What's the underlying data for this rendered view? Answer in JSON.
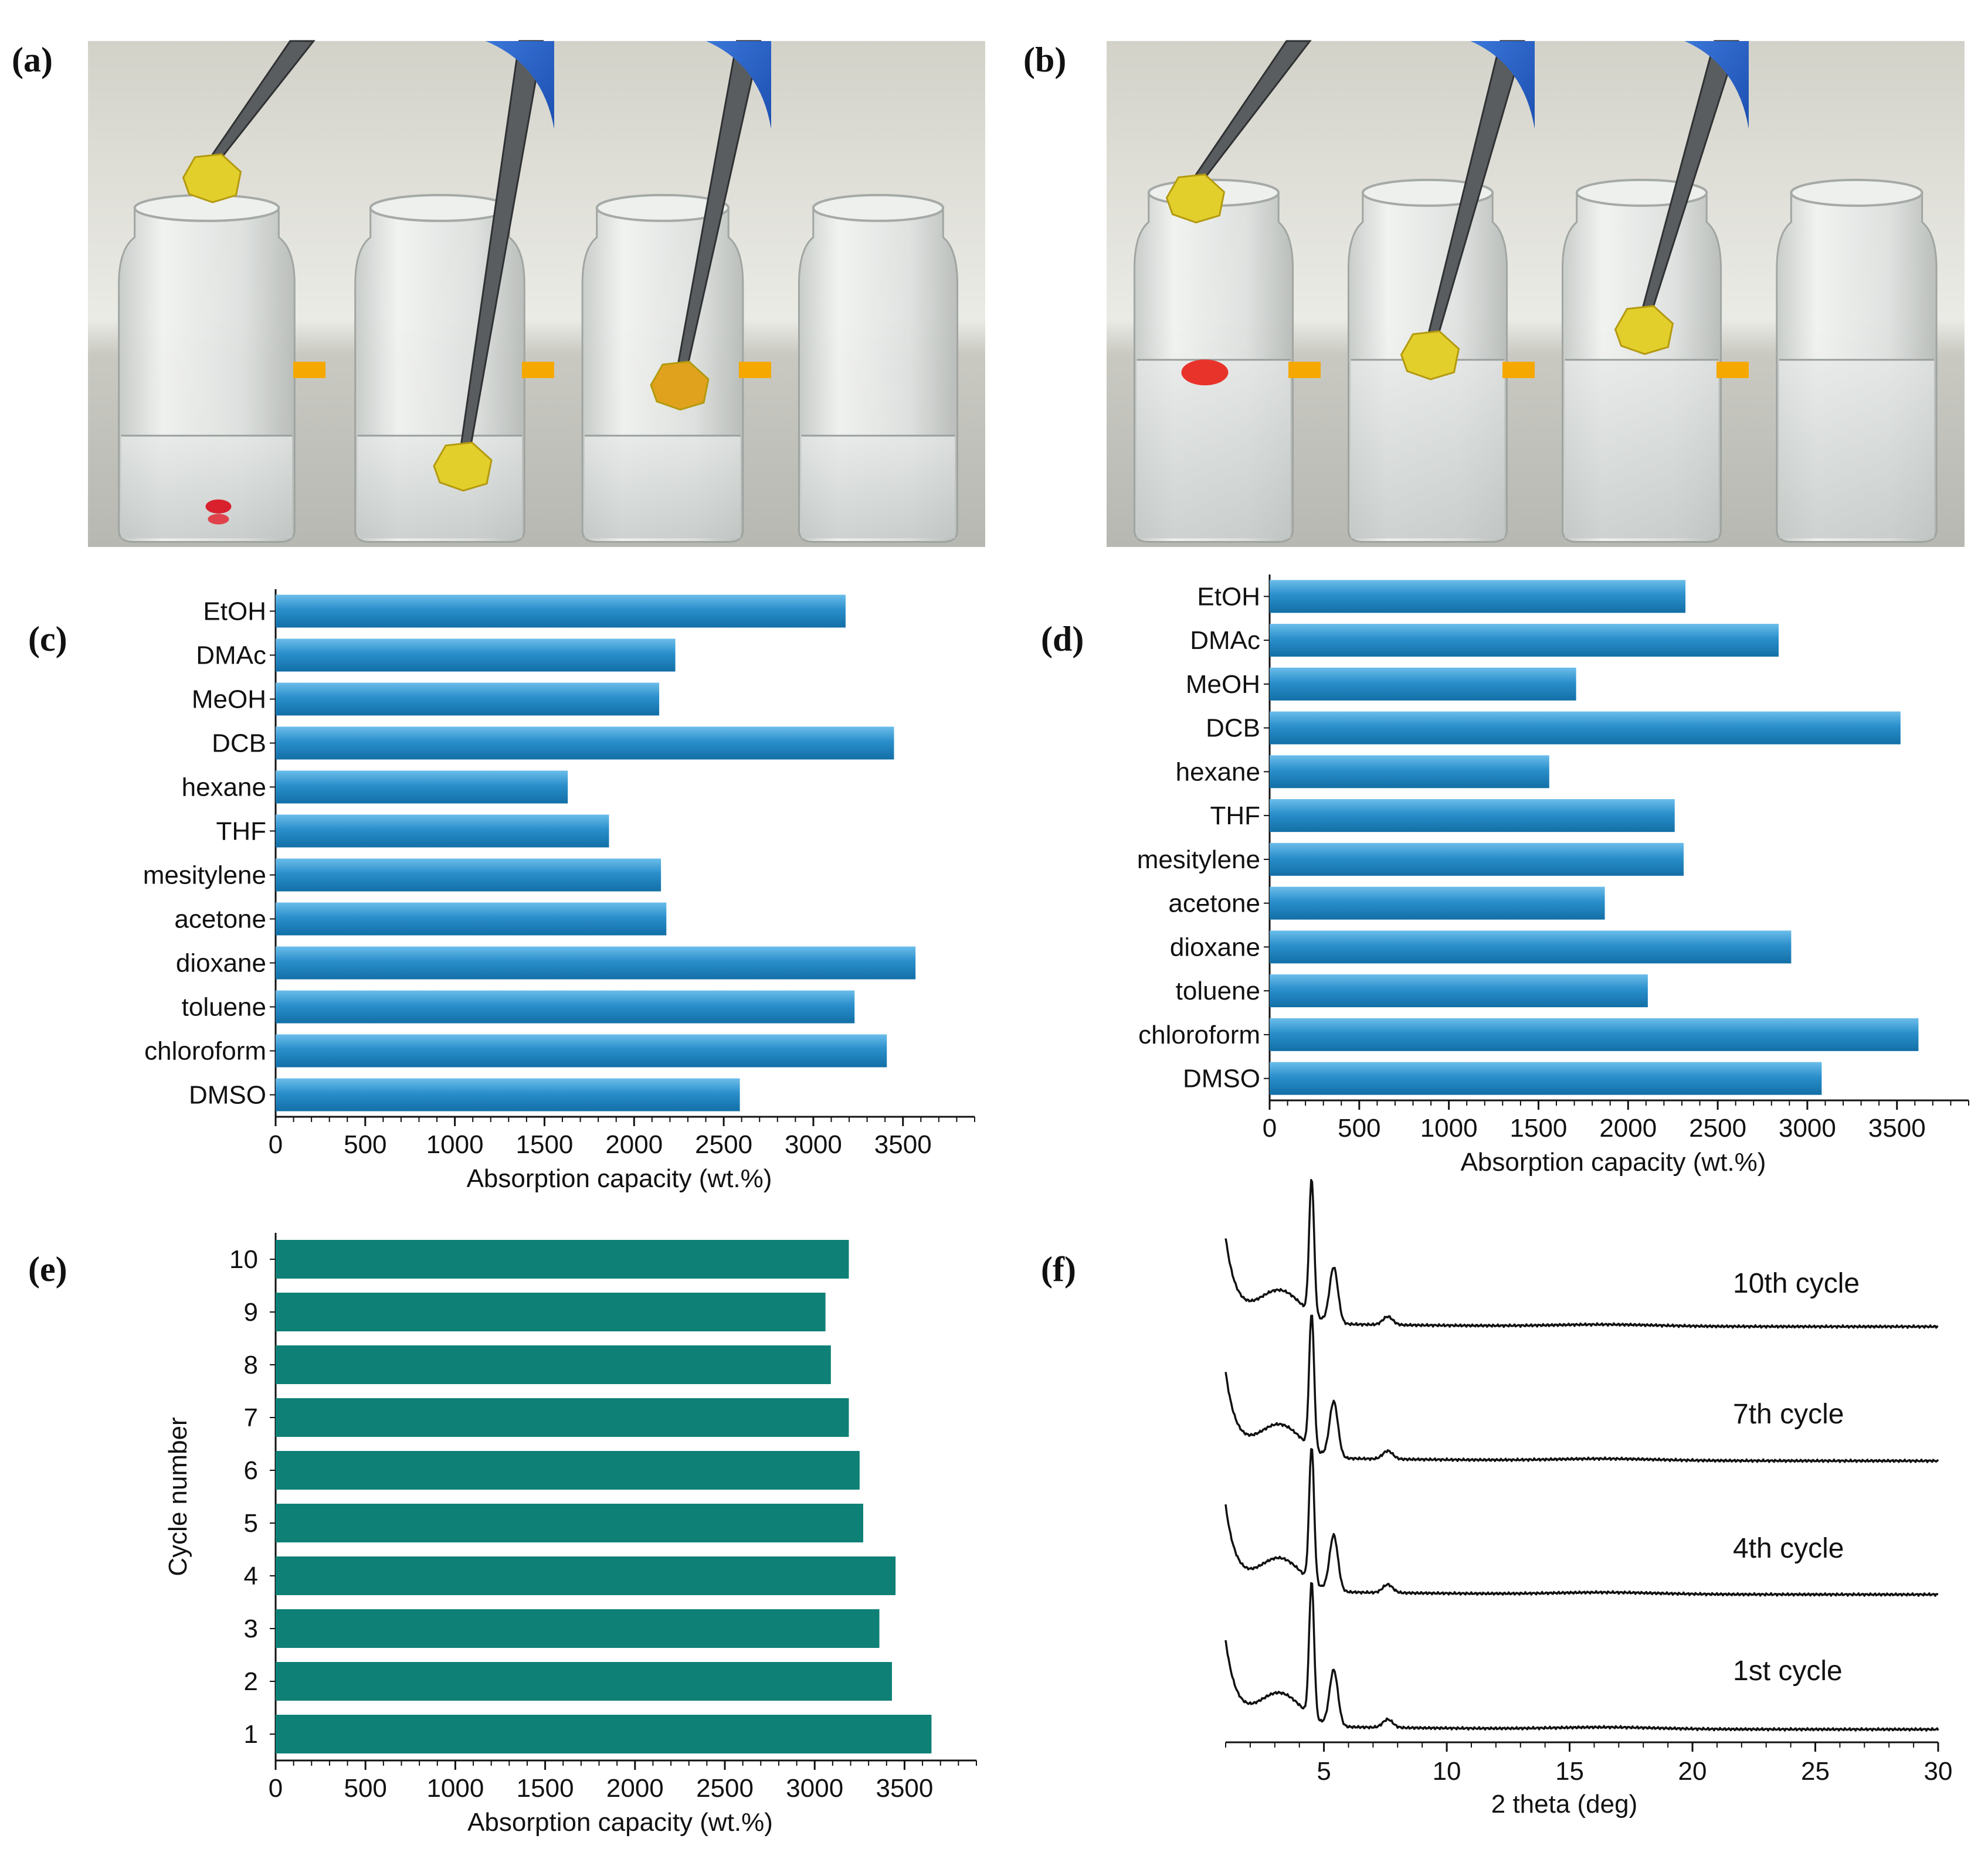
{
  "panel_labels": {
    "a": "(a)",
    "b": "(b)",
    "c": "(c)",
    "d": "(d)",
    "e": "(e)",
    "f": "(f)"
  },
  "photo_panels": {
    "a": {
      "frames": 4,
      "arrow_color": "#f5a800"
    },
    "b": {
      "frames": 4,
      "arrow_color": "#f5a800"
    }
  },
  "colors": {
    "solvent_bar": "#1f82bd",
    "solvent_bar_light": "#5cb3e6",
    "cycle_bar": "#0e8075",
    "axis": "#111111"
  },
  "chart_data": [
    {
      "id": "c",
      "type": "bar",
      "orientation": "horizontal",
      "categories": [
        "EtOH",
        "DMAc",
        "MeOH",
        "DCB",
        "hexane",
        "THF",
        "mesitylene",
        "acetone",
        "dioxane",
        "toluene",
        "chloroform",
        "DMSO"
      ],
      "values": [
        3180,
        2230,
        2140,
        3450,
        1630,
        1860,
        2150,
        2180,
        3570,
        3230,
        3410,
        2590
      ],
      "xlabel": "Absorption capacity (wt.%)",
      "ylabel": "",
      "xlim": [
        0,
        3900
      ],
      "xticks": [
        0,
        500,
        1000,
        1500,
        2000,
        2500,
        3000,
        3500
      ]
    },
    {
      "id": "d",
      "type": "bar",
      "orientation": "horizontal",
      "categories": [
        "EtOH",
        "DMAc",
        "MeOH",
        "DCB",
        "hexane",
        "THF",
        "mesitylene",
        "acetone",
        "dioxane",
        "toluene",
        "chloroform",
        "DMSO"
      ],
      "values": [
        2320,
        2840,
        1710,
        3520,
        1560,
        2260,
        2310,
        1870,
        2910,
        2110,
        3620,
        3080
      ],
      "xlabel": "Absorption capacity (wt.%)",
      "ylabel": "",
      "xlim": [
        0,
        3900
      ],
      "xticks": [
        0,
        500,
        1000,
        1500,
        2000,
        2500,
        3000,
        3500
      ]
    },
    {
      "id": "e",
      "type": "bar",
      "orientation": "horizontal",
      "categories": [
        "10",
        "9",
        "8",
        "7",
        "6",
        "5",
        "4",
        "3",
        "2",
        "1"
      ],
      "values": [
        3190,
        3060,
        3090,
        3190,
        3250,
        3270,
        3450,
        3360,
        3430,
        3650
      ],
      "xlabel": "Absorption capacity (wt.%)",
      "ylabel": "Cycle number",
      "xlim": [
        0,
        3900
      ],
      "xticks": [
        0,
        500,
        1000,
        1500,
        2000,
        2500,
        3000,
        3500
      ]
    },
    {
      "id": "f",
      "type": "line",
      "xlabel": "2 theta (deg)",
      "xlim": [
        1,
        30
      ],
      "xticks": [
        5,
        10,
        15,
        20,
        25,
        30
      ],
      "series": [
        {
          "name": "10th cycle",
          "peaks": [
            4.5,
            5.4,
            7.6
          ]
        },
        {
          "name": "7th cycle",
          "peaks": [
            4.5,
            5.4,
            7.6
          ]
        },
        {
          "name": "4th cycle",
          "peaks": [
            4.5,
            5.4,
            7.6
          ]
        },
        {
          "name": "1st cycle",
          "peaks": [
            4.5,
            5.4,
            7.6
          ]
        }
      ]
    }
  ]
}
